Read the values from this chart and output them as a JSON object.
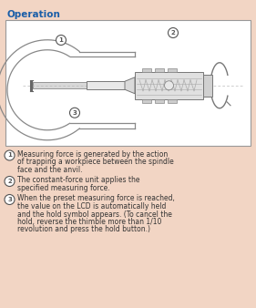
{
  "title": "Operation",
  "title_color": "#1A5EA8",
  "background_color": "#F2D5C4",
  "diagram_bg": "#FFFFFF",
  "diagram_border": "#AAAAAA",
  "text_color": "#333333",
  "frame_color": "#888888",
  "detail_color": "#999999",
  "items": [
    {
      "number": "1",
      "text": "Measuring force is generated by the action of trapping a workpiece between the spindle face and the anvil."
    },
    {
      "number": "2",
      "text": "The constant-force unit applies the specified measuring force."
    },
    {
      "number": "3",
      "text": "When the preset measuring force is reached, the value on the LCD is automatically held and the hold symbol appears. (To cancel the hold, reverse the thimble more than 1/10 revolution and press the hold button.)"
    }
  ],
  "fig_w": 2.81,
  "fig_h": 3.38,
  "dpi": 100
}
